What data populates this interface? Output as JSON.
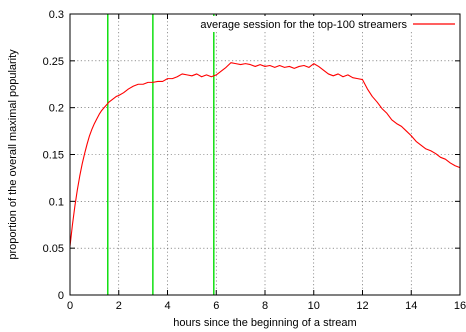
{
  "chart_data": {
    "type": "line",
    "xlabel": "hours since the beginning of a stream",
    "ylabel": "proportion of the overall maximal popularity",
    "xlim": [
      0,
      16
    ],
    "ylim": [
      0,
      0.3
    ],
    "x_ticks": [
      "0",
      "2",
      "4",
      "6",
      "8",
      "10",
      "12",
      "14",
      "16"
    ],
    "y_ticks": [
      "0",
      "0.05",
      "0.1",
      "0.15",
      "0.2",
      "0.25",
      "0.3"
    ],
    "grid": true,
    "legend_position": "top-right",
    "series": [
      {
        "name": "average session for the top-100 streamers",
        "color": "#ff0000",
        "x": [
          0,
          0.1,
          0.2,
          0.3,
          0.4,
          0.5,
          0.6,
          0.7,
          0.8,
          0.9,
          1.0,
          1.1,
          1.2,
          1.3,
          1.4,
          1.5,
          1.6,
          1.7,
          1.8,
          1.9,
          2.0,
          2.2,
          2.4,
          2.6,
          2.8,
          3.0,
          3.2,
          3.4,
          3.6,
          3.8,
          4.0,
          4.2,
          4.4,
          4.6,
          4.8,
          5.0,
          5.2,
          5.4,
          5.6,
          5.8,
          6.0,
          6.2,
          6.4,
          6.6,
          6.8,
          7.0,
          7.2,
          7.4,
          7.6,
          7.8,
          8.0,
          8.2,
          8.4,
          8.6,
          8.8,
          9.0,
          9.2,
          9.4,
          9.6,
          9.8,
          10.0,
          10.2,
          10.4,
          10.6,
          10.8,
          11.0,
          11.2,
          11.4,
          11.6,
          11.8,
          12.0,
          12.2,
          12.4,
          12.6,
          12.8,
          13.0,
          13.2,
          13.4,
          13.6,
          13.8,
          14.0,
          14.2,
          14.4,
          14.6,
          14.8,
          15.0,
          15.2,
          15.4,
          15.6,
          15.8,
          16.0
        ],
        "values": [
          0.052,
          0.075,
          0.095,
          0.112,
          0.127,
          0.14,
          0.151,
          0.161,
          0.17,
          0.177,
          0.183,
          0.188,
          0.193,
          0.197,
          0.2,
          0.203,
          0.206,
          0.208,
          0.21,
          0.212,
          0.213,
          0.216,
          0.22,
          0.223,
          0.225,
          0.225,
          0.227,
          0.227,
          0.228,
          0.228,
          0.231,
          0.231,
          0.233,
          0.236,
          0.235,
          0.234,
          0.236,
          0.233,
          0.235,
          0.233,
          0.235,
          0.239,
          0.243,
          0.248,
          0.247,
          0.246,
          0.247,
          0.246,
          0.244,
          0.246,
          0.244,
          0.245,
          0.243,
          0.245,
          0.243,
          0.244,
          0.242,
          0.244,
          0.245,
          0.243,
          0.247,
          0.244,
          0.24,
          0.236,
          0.234,
          0.236,
          0.233,
          0.235,
          0.232,
          0.231,
          0.23,
          0.22,
          0.212,
          0.206,
          0.199,
          0.194,
          0.187,
          0.183,
          0.18,
          0.175,
          0.17,
          0.164,
          0.16,
          0.156,
          0.154,
          0.151,
          0.147,
          0.145,
          0.141,
          0.138,
          0.136
        ]
      }
    ],
    "vertical_markers": {
      "color": "#00dd00",
      "x": [
        1.55,
        3.4,
        5.9
      ]
    }
  }
}
